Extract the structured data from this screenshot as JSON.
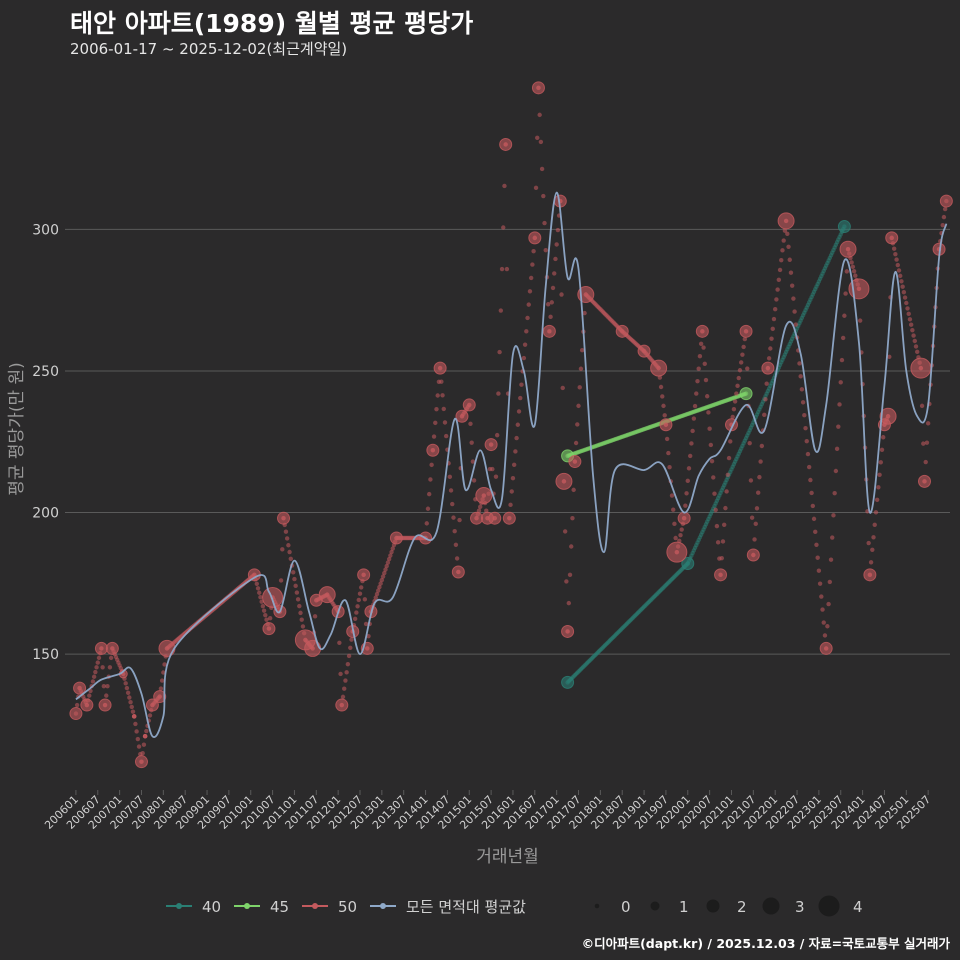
{
  "title": "태안 아파트(1989) 월별 평균 평당가",
  "subtitle": "2006-01-17 ~ 2025-12-02(최근계약일)",
  "footer": "©디아파트(dapt.kr) / 2025.12.03 / 자료=국토교통부 실거래가",
  "colors": {
    "background": "#2b2a2b",
    "grid": "#5a5a5a",
    "s40": "#2a7f74",
    "s45": "#7ed36a",
    "s50": "#c45a5e",
    "avg": "#8fa9c9",
    "text": "#d0d0d0"
  },
  "chart_data": {
    "type": "scatter",
    "title": "태안 아파트(1989) 월별 평균 평당가",
    "xlabel": "거래년월",
    "ylabel": "평균 평당가(만 원)",
    "ylim": [
      102,
      357
    ],
    "y_ticks": [
      150,
      200,
      250,
      300
    ],
    "x_range": [
      "2006-01",
      "2025-12"
    ],
    "x_ticks": [
      "200601",
      "200607",
      "200701",
      "200707",
      "200801",
      "200807",
      "200901",
      "200907",
      "201001",
      "201007",
      "201101",
      "201107",
      "201201",
      "201207",
      "201301",
      "201307",
      "201401",
      "201407",
      "201501",
      "201507",
      "201601",
      "201607",
      "201701",
      "201707",
      "201801",
      "201807",
      "201901",
      "201907",
      "202001",
      "202007",
      "202101",
      "202107",
      "202201",
      "202207",
      "202301",
      "202307",
      "202401",
      "202407",
      "202501",
      "202507"
    ],
    "legend_series": [
      {
        "name": "40",
        "color": "#2a7f74"
      },
      {
        "name": "45",
        "color": "#7ed36a"
      },
      {
        "name": "50",
        "color": "#c45a5e"
      },
      {
        "name": "모든 면적대 평균값",
        "color": "#8fa9c9"
      }
    ],
    "legend_sizes": [
      "0",
      "1",
      "2",
      "3",
      "4"
    ],
    "series": [
      {
        "name": "40",
        "color": "#2a7f74",
        "points": [
          [
            "2017-04",
            140,
            2
          ],
          [
            "2020-01",
            182,
            2
          ],
          [
            "2023-08",
            301,
            2
          ]
        ]
      },
      {
        "name": "45",
        "color": "#7ed36a",
        "points": [
          [
            "2017-04",
            220,
            2
          ],
          [
            "2021-05",
            242,
            2
          ]
        ]
      },
      {
        "name": "50",
        "color": "#c45a5e",
        "points": [
          [
            "2006-01",
            129,
            2
          ],
          [
            "2006-02",
            138,
            2
          ],
          [
            "2006-04",
            132,
            2
          ],
          [
            "2006-08",
            152,
            2
          ],
          [
            "2006-09",
            132,
            2
          ],
          [
            "2006-11",
            152,
            2
          ],
          [
            "2007-02",
            143,
            1
          ],
          [
            "2007-05",
            128,
            0
          ],
          [
            "2007-07",
            112,
            2
          ],
          [
            "2007-08",
            121,
            0
          ],
          [
            "2007-10",
            132,
            2
          ],
          [
            "2007-12",
            135,
            2
          ],
          [
            "2008-02",
            152,
            3
          ],
          [
            "2010-02",
            178,
            2
          ],
          [
            "2010-06",
            159,
            2
          ],
          [
            "2010-07",
            170,
            4
          ],
          [
            "2010-09",
            165,
            2
          ],
          [
            "2010-10",
            198,
            2
          ],
          [
            "2011-04",
            155,
            4
          ],
          [
            "2011-06",
            152,
            3
          ],
          [
            "2011-07",
            169,
            2
          ],
          [
            "2011-10",
            171,
            3
          ],
          [
            "2012-01",
            165,
            2
          ],
          [
            "2012-02",
            132,
            2
          ],
          [
            "2012-05",
            158,
            2
          ],
          [
            "2012-08",
            178,
            2
          ],
          [
            "2012-09",
            152,
            2
          ],
          [
            "2012-10",
            165,
            2
          ],
          [
            "2013-05",
            191,
            2
          ],
          [
            "2014-01",
            191,
            2
          ],
          [
            "2014-03",
            222,
            2
          ],
          [
            "2014-05",
            251,
            2
          ],
          [
            "2014-10",
            179,
            2
          ],
          [
            "2014-11",
            234,
            2
          ],
          [
            "2015-01",
            238,
            2
          ],
          [
            "2015-03",
            198,
            2
          ],
          [
            "2015-05",
            206,
            3
          ],
          [
            "2015-06",
            198,
            2
          ],
          [
            "2015-07",
            224,
            2
          ],
          [
            "2015-08",
            198,
            2
          ],
          [
            "2015-11",
            330,
            2
          ],
          [
            "2015-12",
            198,
            2
          ],
          [
            "2016-07",
            297,
            2
          ],
          [
            "2016-08",
            350,
            2
          ],
          [
            "2016-11",
            264,
            2
          ],
          [
            "2017-02",
            310,
            2
          ],
          [
            "2017-03",
            211,
            3
          ],
          [
            "2017-04",
            158,
            2
          ],
          [
            "2017-06",
            218,
            2
          ],
          [
            "2017-09",
            277,
            3
          ],
          [
            "2018-07",
            264,
            2
          ],
          [
            "2019-01",
            257,
            2
          ],
          [
            "2019-05",
            251,
            3
          ],
          [
            "2019-07",
            231,
            2
          ],
          [
            "2019-10",
            186,
            4
          ],
          [
            "2019-12",
            198,
            2
          ],
          [
            "2020-05",
            264,
            2
          ],
          [
            "2020-10",
            178,
            2
          ],
          [
            "2021-01",
            231,
            2
          ],
          [
            "2021-05",
            264,
            2
          ],
          [
            "2021-07",
            185,
            2
          ],
          [
            "2021-11",
            251,
            2
          ],
          [
            "2022-04",
            303,
            3
          ],
          [
            "2023-03",
            152,
            2
          ],
          [
            "2023-09",
            293,
            3
          ],
          [
            "2023-12",
            279,
            4
          ],
          [
            "2024-03",
            178,
            2
          ],
          [
            "2024-07",
            231,
            2
          ],
          [
            "2024-08",
            234,
            3
          ],
          [
            "2024-09",
            297,
            2
          ],
          [
            "2025-05",
            251,
            4
          ],
          [
            "2025-06",
            211,
            2
          ],
          [
            "2025-10",
            293,
            2
          ],
          [
            "2025-12",
            310,
            2
          ]
        ]
      }
    ],
    "average_line": [
      [
        "2006-01",
        134
      ],
      [
        "2006-05",
        138
      ],
      [
        "2006-08",
        141
      ],
      [
        "2007-01",
        143
      ],
      [
        "2007-04",
        145
      ],
      [
        "2007-07",
        136
      ],
      [
        "2007-10",
        121
      ],
      [
        "2008-01",
        128
      ],
      [
        "2008-04",
        152
      ],
      [
        "2010-02",
        177
      ],
      [
        "2010-06",
        172
      ],
      [
        "2010-09",
        165
      ],
      [
        "2011-01",
        183
      ],
      [
        "2011-05",
        165
      ],
      [
        "2011-08",
        152
      ],
      [
        "2011-11",
        157
      ],
      [
        "2012-03",
        169
      ],
      [
        "2012-07",
        150
      ],
      [
        "2012-11",
        168
      ],
      [
        "2013-04",
        170
      ],
      [
        "2013-10",
        191
      ],
      [
        "2014-04",
        193
      ],
      [
        "2014-09",
        233
      ],
      [
        "2014-12",
        208
      ],
      [
        "2015-04",
        222
      ],
      [
        "2015-07",
        208
      ],
      [
        "2015-10",
        205
      ],
      [
        "2016-01",
        256
      ],
      [
        "2016-04",
        250
      ],
      [
        "2016-07",
        231
      ],
      [
        "2016-10",
        280
      ],
      [
        "2017-01",
        313
      ],
      [
        "2017-04",
        283
      ],
      [
        "2017-07",
        286
      ],
      [
        "2017-11",
        213
      ],
      [
        "2018-02",
        186
      ],
      [
        "2018-05",
        215
      ],
      [
        "2019-01",
        215
      ],
      [
        "2019-06",
        217
      ],
      [
        "2019-12",
        200
      ],
      [
        "2020-04",
        213
      ],
      [
        "2020-07",
        219
      ],
      [
        "2020-10",
        222
      ],
      [
        "2021-05",
        238
      ],
      [
        "2021-10",
        229
      ],
      [
        "2022-04",
        266
      ],
      [
        "2022-08",
        256
      ],
      [
        "2022-12",
        222
      ],
      [
        "2023-03",
        238
      ],
      [
        "2023-08",
        289
      ],
      [
        "2023-12",
        260
      ],
      [
        "2024-03",
        200
      ],
      [
        "2024-07",
        245
      ],
      [
        "2024-10",
        285
      ],
      [
        "2025-01",
        250
      ],
      [
        "2025-04",
        234
      ],
      [
        "2025-07",
        238
      ],
      [
        "2025-10",
        290
      ],
      [
        "2025-12",
        302
      ]
    ]
  }
}
